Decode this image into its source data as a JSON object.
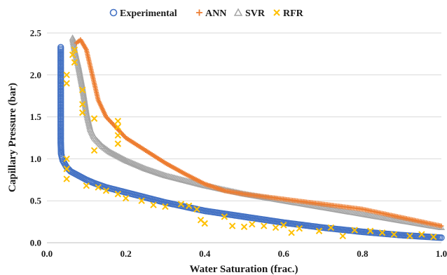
{
  "chart_data": {
    "type": "scatter",
    "xlabel": "Water Saturation (frac.)",
    "ylabel": "Capillary Pressure (bar)",
    "xlim": [
      0.0,
      1.0
    ],
    "ylim": [
      0.0,
      2.5
    ],
    "x_ticks": [
      "0.0",
      "0.2",
      "0.4",
      "0.6",
      "0.8",
      "1.0"
    ],
    "y_ticks": [
      "0.0",
      "0.5",
      "1.0",
      "1.5",
      "2.0",
      "2.5"
    ],
    "grid": "horizontal",
    "legend_position": "top",
    "series": [
      {
        "name": "Experimental",
        "marker": "circle-open",
        "color": "#4472C4",
        "points": [
          [
            0.035,
            2.33
          ],
          [
            0.035,
            2.0
          ],
          [
            0.035,
            1.7
          ],
          [
            0.035,
            1.4
          ],
          [
            0.035,
            1.2
          ],
          [
            0.036,
            1.06
          ],
          [
            0.04,
            0.98
          ],
          [
            0.05,
            0.9
          ],
          [
            0.06,
            0.85
          ],
          [
            0.08,
            0.8
          ],
          [
            0.1,
            0.75
          ],
          [
            0.12,
            0.71
          ],
          [
            0.15,
            0.66
          ],
          [
            0.2,
            0.6
          ],
          [
            0.25,
            0.54
          ],
          [
            0.3,
            0.48
          ],
          [
            0.35,
            0.43
          ],
          [
            0.4,
            0.38
          ],
          [
            0.5,
            0.31
          ],
          [
            0.6,
            0.24
          ],
          [
            0.7,
            0.18
          ],
          [
            0.8,
            0.13
          ],
          [
            0.9,
            0.09
          ],
          [
            1.0,
            0.06
          ]
        ]
      },
      {
        "name": "ANN",
        "marker": "plus",
        "color": "#ED7D31",
        "points": [
          [
            0.075,
            2.38
          ],
          [
            0.085,
            2.42
          ],
          [
            0.1,
            2.3
          ],
          [
            0.11,
            2.1
          ],
          [
            0.12,
            1.9
          ],
          [
            0.13,
            1.7
          ],
          [
            0.15,
            1.5
          ],
          [
            0.18,
            1.35
          ],
          [
            0.2,
            1.25
          ],
          [
            0.25,
            1.1
          ],
          [
            0.3,
            0.95
          ],
          [
            0.35,
            0.82
          ],
          [
            0.4,
            0.7
          ],
          [
            0.45,
            0.62
          ],
          [
            0.5,
            0.58
          ],
          [
            0.6,
            0.52
          ],
          [
            0.7,
            0.46
          ],
          [
            0.8,
            0.4
          ],
          [
            0.9,
            0.3
          ],
          [
            1.0,
            0.2
          ]
        ]
      },
      {
        "name": "SVR",
        "marker": "triangle-open",
        "color": "#A5A5A5",
        "points": [
          [
            0.065,
            2.44
          ],
          [
            0.07,
            2.3
          ],
          [
            0.08,
            2.1
          ],
          [
            0.09,
            1.85
          ],
          [
            0.1,
            1.55
          ],
          [
            0.11,
            1.35
          ],
          [
            0.12,
            1.25
          ],
          [
            0.14,
            1.15
          ],
          [
            0.16,
            1.08
          ],
          [
            0.2,
            0.98
          ],
          [
            0.25,
            0.88
          ],
          [
            0.3,
            0.8
          ],
          [
            0.35,
            0.74
          ],
          [
            0.4,
            0.68
          ],
          [
            0.5,
            0.58
          ],
          [
            0.6,
            0.5
          ],
          [
            0.7,
            0.42
          ],
          [
            0.8,
            0.34
          ],
          [
            0.9,
            0.26
          ],
          [
            1.0,
            0.18
          ]
        ]
      },
      {
        "name": "RFR",
        "marker": "x",
        "color": "#FFC000",
        "points": [
          [
            0.05,
            2.0
          ],
          [
            0.05,
            1.9
          ],
          [
            0.05,
            1.0
          ],
          [
            0.05,
            0.88
          ],
          [
            0.05,
            0.76
          ],
          [
            0.07,
            2.3
          ],
          [
            0.07,
            2.15
          ],
          [
            0.065,
            2.24
          ],
          [
            0.09,
            1.82
          ],
          [
            0.09,
            1.65
          ],
          [
            0.09,
            1.55
          ],
          [
            0.1,
            0.68
          ],
          [
            0.12,
            1.48
          ],
          [
            0.12,
            1.1
          ],
          [
            0.13,
            0.66
          ],
          [
            0.15,
            0.62
          ],
          [
            0.18,
            1.45
          ],
          [
            0.18,
            1.38
          ],
          [
            0.18,
            1.28
          ],
          [
            0.18,
            1.18
          ],
          [
            0.18,
            0.58
          ],
          [
            0.2,
            0.53
          ],
          [
            0.24,
            0.5
          ],
          [
            0.27,
            0.45
          ],
          [
            0.3,
            0.43
          ],
          [
            0.34,
            0.46
          ],
          [
            0.36,
            0.44
          ],
          [
            0.38,
            0.4
          ],
          [
            0.39,
            0.27
          ],
          [
            0.4,
            0.23
          ],
          [
            0.45,
            0.31
          ],
          [
            0.47,
            0.2
          ],
          [
            0.5,
            0.19
          ],
          [
            0.52,
            0.22
          ],
          [
            0.55,
            0.2
          ],
          [
            0.58,
            0.18
          ],
          [
            0.6,
            0.21
          ],
          [
            0.62,
            0.12
          ],
          [
            0.64,
            0.17
          ],
          [
            0.69,
            0.14
          ],
          [
            0.72,
            0.18
          ],
          [
            0.75,
            0.08
          ],
          [
            0.78,
            0.15
          ],
          [
            0.82,
            0.14
          ],
          [
            0.85,
            0.12
          ],
          [
            0.88,
            0.1
          ],
          [
            0.92,
            0.08
          ],
          [
            0.95,
            0.1
          ],
          [
            0.98,
            0.07
          ]
        ]
      }
    ]
  }
}
